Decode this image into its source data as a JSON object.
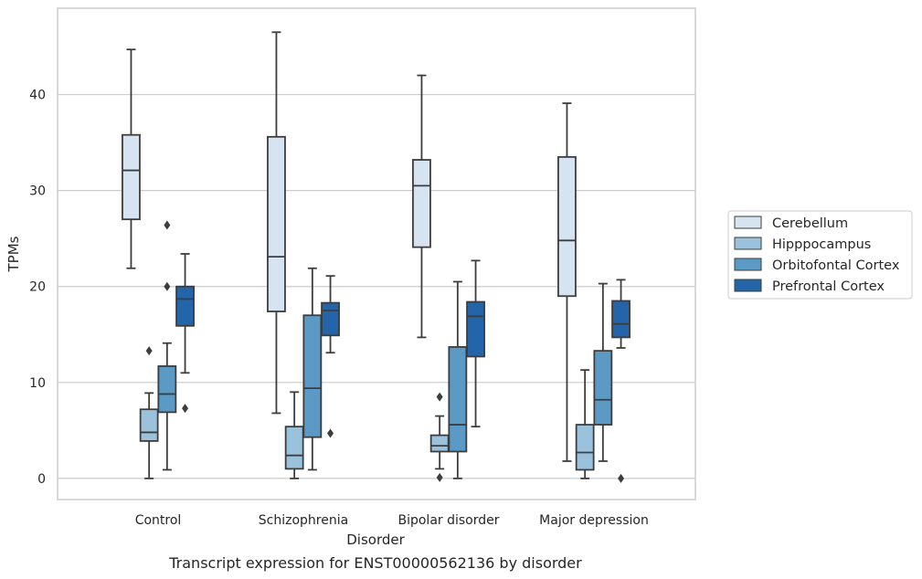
{
  "chart_data": {
    "type": "box",
    "caption": "Transcript expression for ENST00000562136 by disorder",
    "xlabel": "Disorder",
    "ylabel": "TPMs",
    "ylim": [
      -2.2,
      49
    ],
    "yticks": [
      0,
      10,
      20,
      30,
      40
    ],
    "grid": "horizontal",
    "legend_position": "right",
    "categories": [
      "Control",
      "Schizophrenia",
      "Bipolar disorder",
      "Major depression"
    ],
    "series": [
      {
        "name": "Cerebellum",
        "color": "#d6e4f1",
        "boxes": [
          {
            "whislo": 21.9,
            "q1": 27.0,
            "med": 32.1,
            "q3": 35.8,
            "whishi": 44.7,
            "fliers": []
          },
          {
            "whislo": 6.8,
            "q1": 17.4,
            "med": 23.1,
            "q3": 35.6,
            "whishi": 46.5,
            "fliers": []
          },
          {
            "whislo": 14.7,
            "q1": 24.1,
            "med": 30.5,
            "q3": 33.2,
            "whishi": 42.0,
            "fliers": []
          },
          {
            "whislo": 1.8,
            "q1": 19.0,
            "med": 24.8,
            "q3": 33.5,
            "whishi": 39.1,
            "fliers": []
          }
        ]
      },
      {
        "name": "Hipppocampus",
        "color": "#9ac2dc",
        "boxes": [
          {
            "whislo": 0.0,
            "q1": 3.9,
            "med": 4.8,
            "q3": 7.2,
            "whishi": 8.9,
            "fliers": [
              13.3
            ]
          },
          {
            "whislo": 0.0,
            "q1": 1.0,
            "med": 2.4,
            "q3": 5.4,
            "whishi": 9.0,
            "fliers": []
          },
          {
            "whislo": 1.0,
            "q1": 2.8,
            "med": 3.4,
            "q3": 4.5,
            "whishi": 6.5,
            "fliers": [
              8.5,
              0.1
            ]
          },
          {
            "whislo": 0.0,
            "q1": 0.9,
            "med": 2.7,
            "q3": 5.6,
            "whishi": 11.3,
            "fliers": []
          }
        ]
      },
      {
        "name": "Orbitofontal Cortex",
        "color": "#5a9ac5",
        "boxes": [
          {
            "whislo": 0.9,
            "q1": 6.9,
            "med": 8.8,
            "q3": 11.7,
            "whishi": 14.1,
            "fliers": [
              26.4,
              20.0
            ]
          },
          {
            "whislo": 0.9,
            "q1": 4.3,
            "med": 9.4,
            "q3": 17.0,
            "whishi": 21.9,
            "fliers": []
          },
          {
            "whislo": 0.0,
            "q1": 2.8,
            "med": 5.6,
            "q3": 13.7,
            "whishi": 20.5,
            "fliers": []
          },
          {
            "whislo": 1.8,
            "q1": 5.6,
            "med": 8.2,
            "q3": 13.3,
            "whishi": 20.3,
            "fliers": []
          }
        ]
      },
      {
        "name": "Prefrontal Cortex",
        "color": "#2464a8",
        "boxes": [
          {
            "whislo": 11.0,
            "q1": 15.9,
            "med": 18.7,
            "q3": 20.0,
            "whishi": 23.4,
            "fliers": [
              7.3
            ]
          },
          {
            "whislo": 13.1,
            "q1": 14.9,
            "med": 17.5,
            "q3": 18.3,
            "whishi": 21.1,
            "fliers": [
              4.7
            ]
          },
          {
            "whislo": 5.4,
            "q1": 12.7,
            "med": 16.9,
            "q3": 18.4,
            "whishi": 22.7,
            "fliers": []
          },
          {
            "whislo": 13.6,
            "q1": 14.7,
            "med": 16.1,
            "q3": 18.5,
            "whishi": 20.7,
            "fliers": [
              0.0
            ]
          }
        ]
      }
    ]
  }
}
